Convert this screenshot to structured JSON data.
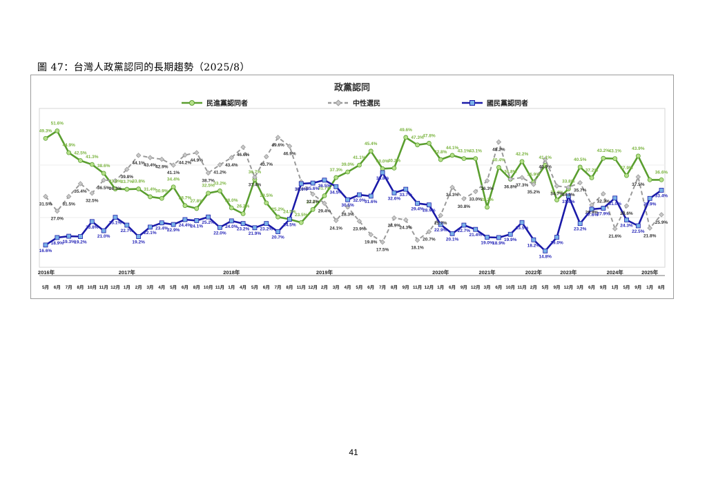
{
  "caption": "圖 47：台灣人政黨認同的長期趨勢（2025/8）",
  "page_number": "41",
  "chart_data": {
    "type": "line",
    "title": "政黨認同",
    "legend_position": "top",
    "x": [
      "5月",
      "6月",
      "7月",
      "8月",
      "10月",
      "11月",
      "12月",
      "1月",
      "2月",
      "3月",
      "4月",
      "5月",
      "6月",
      "8月",
      "10月",
      "11月",
      "1月",
      "4月",
      "5月",
      "6月",
      "7月",
      "8月",
      "11月",
      "12月",
      "2月",
      "3月",
      "4月",
      "5月",
      "6月",
      "7月",
      "8月",
      "9月",
      "11月",
      "12月",
      "1月",
      "6月",
      "9月",
      "12月",
      "3月",
      "6月",
      "10月",
      "11月",
      "2月",
      "5月",
      "9月",
      "12月",
      "3月",
      "6月",
      "9月",
      "1月",
      "5月",
      "9月",
      "1月",
      "8月"
    ],
    "years": [
      {
        "label": "2016年",
        "index": 0
      },
      {
        "label": "2017年",
        "index": 7
      },
      {
        "label": "2018年",
        "index": 16
      },
      {
        "label": "2019年",
        "index": 24
      },
      {
        "label": "2020年",
        "index": 34
      },
      {
        "label": "2021年",
        "index": 38
      },
      {
        "label": "2022年",
        "index": 42
      },
      {
        "label": "2023年",
        "index": 45
      },
      {
        "label": "2024年",
        "index": 49
      },
      {
        "label": "2025年",
        "index": 52
      }
    ],
    "ylim": [
      10,
      57
    ],
    "series": [
      {
        "name": "民進黨認同者",
        "color": "#5a9e2f",
        "marker": "#b5e08a",
        "values": [
          49.3,
          51.6,
          44.9,
          42.5,
          41.3,
          38.6,
          33.8,
          33.7,
          33.8,
          31.4,
          30.9,
          34.4,
          28.7,
          27.8,
          32.5,
          33.2,
          28.0,
          26.2,
          36.7,
          29.5,
          25.2,
          24.5,
          23.5,
          27.5,
          31.7,
          37.3,
          39.0,
          41.1,
          45.4,
          40.0,
          40.2,
          49.6,
          47.3,
          47.8,
          42.8,
          44.1,
          43.1,
          43.1,
          28.2,
          40.4,
          36.8,
          42.2,
          35.9,
          41.1,
          30.4,
          33.8,
          40.5,
          37.2,
          43.2,
          43.1,
          37.9,
          43.9,
          36.6,
          36.6
        ],
        "labels": [
          "49.3%",
          "51.6%",
          "44.9%",
          "42.5%",
          "41.3%",
          "38.6%",
          "33.8%",
          "33.7%",
          "33.8%",
          "31.4%",
          "30.9%",
          "34.4%",
          "28.7%",
          "27.8%",
          "32.5%",
          "33.2%",
          "28.0%",
          "26.2%",
          "36.7%",
          "29.5%",
          "25.2%",
          "24.5%",
          "23.5%",
          "27.5%",
          "31.7%",
          "37.3%",
          "39.0%",
          "41.1%",
          "45.4%",
          "40.0%",
          "40.2%",
          "49.6%",
          "47.3%",
          "47.8%",
          "42.8%",
          "44.1%",
          "43.1%",
          "43.1%",
          "28.2%",
          "40.4%",
          "36.8%",
          "42.2%",
          "35.9%",
          "41.1%",
          "30.4%",
          "33.8%",
          "40.5%",
          "37.2%",
          "43.2%",
          "43.1%",
          "37.9%",
          "43.9%",
          "",
          "36.6%"
        ]
      },
      {
        "name": "中性選民",
        "color": "#9a9a9a",
        "marker": "#c8c8c8",
        "dashed": true,
        "values": [
          31.5,
          27.0,
          31.5,
          35.4,
          32.5,
          36.5,
          36.3,
          39.8,
          44.1,
          43.4,
          42.9,
          41.1,
          44.2,
          44.9,
          38.7,
          41.2,
          43.4,
          46.6,
          37.4,
          43.7,
          49.6,
          46.9,
          36.0,
          32.2,
          29.4,
          24.1,
          28.3,
          23.9,
          19.8,
          17.5,
          24.9,
          24.3,
          18.1,
          20.7,
          25.7,
          34.3,
          30.8,
          33.0,
          36.3,
          48.2,
          36.8,
          37.3,
          35.2,
          42.9,
          34.7,
          34.3,
          35.7,
          28.9,
          32.3,
          21.6,
          28.6,
          37.5,
          21.8,
          25.9
        ],
        "labels": [
          "31.5%",
          "27.0%",
          "31.5%",
          "35.4%",
          "32.5%",
          "36.5%",
          "36.3%",
          "39.8%",
          "44.1%",
          "43.4%",
          "42.9%",
          "41.1%",
          "44.2%",
          "44.9%",
          "38.7%",
          "41.2%",
          "43.4%",
          "46.6%",
          "37.4%",
          "43.7%",
          "49.6%",
          "46.9%",
          "36.0%",
          "32.2%",
          "29.4%",
          "24.1%",
          "28.3%",
          "23.9%",
          "19.8%",
          "17.5%",
          "24.9%",
          "24.3%",
          "18.1%",
          "20.7%",
          "25.7%",
          "34.3%",
          "30.8%",
          "33.0%",
          "36.3%",
          "48.2%",
          "36.8%",
          "37.3%",
          "35.2%",
          "42.9%",
          "34.7%",
          "34.3%",
          "35.7%",
          "28.9%",
          "32.3%",
          "21.6%",
          "28.6%",
          "37.5%",
          "21.8%",
          "25.9%"
        ]
      },
      {
        "name": "國民黨認同者",
        "color": "#1a1aa8",
        "marker": "#7ab2e8",
        "values": [
          16.6,
          18.9,
          19.3,
          19.2,
          23.8,
          21.0,
          25.1,
          22.7,
          19.2,
          22.1,
          23.4,
          22.9,
          24.4,
          24.1,
          25.2,
          22.0,
          24.0,
          23.2,
          21.9,
          23.2,
          20.7,
          24.5,
          35.4,
          35.6,
          36.5,
          34.5,
          30.5,
          32.0,
          31.6,
          38.8,
          32.6,
          33.7,
          29.4,
          28.9,
          22.9,
          20.1,
          22.7,
          21.4,
          19.0,
          18.9,
          19.9,
          23.5,
          18.2,
          14.8,
          19.0,
          31.6,
          23.2,
          27.6,
          27.9,
          31.0,
          24.3,
          22.5,
          30.9,
          33.4
        ],
        "labels": [
          "16.6%",
          "18.9%",
          "19.3%",
          "19.2%",
          "23.8%",
          "21.0%",
          "25.1%",
          "22.7%",
          "19.2%",
          "22.1%",
          "23.4%",
          "22.9%",
          "24.4%",
          "24.1%",
          "25.2%",
          "22.0%",
          "24.0%",
          "23.2%",
          "21.9%",
          "23.2%",
          "20.7%",
          "24.5%",
          "35.4%",
          "35.6%",
          "36.5%",
          "34.5%",
          "30.5%",
          "32.0%",
          "31.6%",
          "38.8%",
          "32.6%",
          "33.7%",
          "29.4%",
          "28.9%",
          "22.9%",
          "20.1%",
          "22.7%",
          "21.4%",
          "19.0%",
          "18.9%",
          "19.9%",
          "23.5%",
          "18.2%",
          "14.8%",
          "19.0%",
          "31.6%",
          "23.2%",
          "27.6%",
          "27.9%",
          "31.0%",
          "24.3%",
          "22.5%",
          "30.9%",
          "33.4%"
        ]
      }
    ]
  }
}
